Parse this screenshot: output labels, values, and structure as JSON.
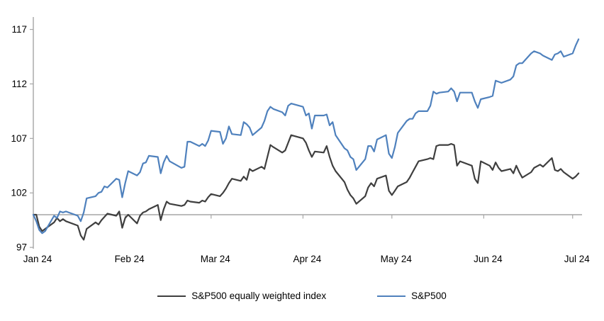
{
  "chart_data": {
    "type": "line",
    "title": "",
    "xlabel": "",
    "ylabel": "",
    "ylim": [
      97,
      117
    ],
    "grid": false,
    "legend_position": "bottom",
    "y_axis": {
      "ticks": [
        97,
        102,
        107,
        112,
        117
      ],
      "baseline_value": 100
    },
    "x_axis": {
      "origin_date": "2024-01-01",
      "tick_dates": [
        "2024-01-01",
        "2024-02-01",
        "2024-03-01",
        "2024-04-01",
        "2024-05-01",
        "2024-06-01",
        "2024-07-01"
      ],
      "tick_labels": [
        "Jan 24",
        "Feb 24",
        "Mar 24",
        "Apr 24",
        "May 24",
        "Jun 24",
        "Jul 24"
      ]
    },
    "colors": {
      "axis": "#a6a6a6",
      "equal_weight_line": "#3f3f3f",
      "sp500_line": "#4f81bd",
      "text": "#000000"
    },
    "dates": [
      "2024-01-01",
      "2024-01-02",
      "2024-01-03",
      "2024-01-04",
      "2024-01-05",
      "2024-01-08",
      "2024-01-09",
      "2024-01-10",
      "2024-01-11",
      "2024-01-12",
      "2024-01-16",
      "2024-01-17",
      "2024-01-18",
      "2024-01-19",
      "2024-01-22",
      "2024-01-23",
      "2024-01-24",
      "2024-01-25",
      "2024-01-26",
      "2024-01-29",
      "2024-01-30",
      "2024-01-31",
      "2024-02-01",
      "2024-02-02",
      "2024-02-05",
      "2024-02-06",
      "2024-02-07",
      "2024-02-08",
      "2024-02-09",
      "2024-02-12",
      "2024-02-13",
      "2024-02-14",
      "2024-02-15",
      "2024-02-16",
      "2024-02-20",
      "2024-02-21",
      "2024-02-22",
      "2024-02-23",
      "2024-02-26",
      "2024-02-27",
      "2024-02-28",
      "2024-02-29",
      "2024-03-01",
      "2024-03-04",
      "2024-03-05",
      "2024-03-06",
      "2024-03-07",
      "2024-03-08",
      "2024-03-11",
      "2024-03-12",
      "2024-03-13",
      "2024-03-14",
      "2024-03-15",
      "2024-03-18",
      "2024-03-19",
      "2024-03-20",
      "2024-03-21",
      "2024-03-22",
      "2024-03-25",
      "2024-03-26",
      "2024-03-27",
      "2024-03-28",
      "2024-04-01",
      "2024-04-02",
      "2024-04-03",
      "2024-04-04",
      "2024-04-05",
      "2024-04-08",
      "2024-04-09",
      "2024-04-10",
      "2024-04-11",
      "2024-04-12",
      "2024-04-15",
      "2024-04-16",
      "2024-04-17",
      "2024-04-18",
      "2024-04-19",
      "2024-04-22",
      "2024-04-23",
      "2024-04-24",
      "2024-04-25",
      "2024-04-26",
      "2024-04-29",
      "2024-04-30",
      "2024-05-01",
      "2024-05-02",
      "2024-05-03",
      "2024-05-06",
      "2024-05-07",
      "2024-05-08",
      "2024-05-09",
      "2024-05-10",
      "2024-05-13",
      "2024-05-14",
      "2024-05-15",
      "2024-05-16",
      "2024-05-17",
      "2024-05-20",
      "2024-05-21",
      "2024-05-22",
      "2024-05-23",
      "2024-05-24",
      "2024-05-28",
      "2024-05-29",
      "2024-05-30",
      "2024-05-31",
      "2024-06-03",
      "2024-06-04",
      "2024-06-05",
      "2024-06-06",
      "2024-06-07",
      "2024-06-10",
      "2024-06-11",
      "2024-06-12",
      "2024-06-13",
      "2024-06-14",
      "2024-06-17",
      "2024-06-18",
      "2024-06-20",
      "2024-06-21",
      "2024-06-24",
      "2024-06-25",
      "2024-06-26",
      "2024-06-27",
      "2024-06-28",
      "2024-07-01",
      "2024-07-02",
      "2024-07-03"
    ],
    "series": [
      {
        "name": "S&P500 equally weighted index",
        "color": "#3f3f3f",
        "values": [
          100.0,
          100.0,
          98.9,
          98.5,
          98.7,
          99.3,
          99.7,
          99.4,
          99.6,
          99.4,
          99.0,
          98.1,
          97.7,
          98.7,
          99.3,
          99.1,
          99.5,
          99.8,
          100.1,
          99.9,
          100.3,
          98.8,
          99.7,
          100.0,
          99.2,
          99.9,
          100.2,
          100.3,
          100.5,
          100.9,
          99.5,
          100.5,
          101.2,
          101.0,
          100.8,
          100.9,
          101.3,
          101.2,
          101.1,
          101.3,
          101.2,
          101.6,
          101.9,
          101.7,
          102.0,
          102.4,
          102.9,
          103.3,
          103.1,
          103.5,
          103.2,
          104.2,
          104.0,
          104.4,
          104.2,
          105.3,
          106.4,
          106.2,
          105.7,
          105.9,
          106.6,
          107.3,
          107.0,
          106.6,
          105.9,
          105.3,
          105.8,
          105.7,
          106.3,
          105.3,
          104.5,
          104.0,
          103.0,
          102.3,
          101.8,
          101.5,
          101.0,
          101.7,
          102.5,
          102.9,
          102.6,
          103.3,
          103.6,
          102.2,
          101.8,
          102.2,
          102.6,
          103.0,
          103.4,
          103.9,
          104.4,
          104.9,
          105.1,
          105.2,
          105.1,
          106.3,
          106.4,
          106.4,
          106.5,
          106.4,
          104.5,
          104.9,
          104.5,
          103.3,
          102.9,
          104.9,
          104.5,
          104.1,
          104.8,
          104.3,
          104.0,
          104.2,
          103.8,
          104.5,
          103.9,
          103.4,
          103.9,
          104.3,
          104.6,
          104.4,
          105.2,
          104.1,
          104.0,
          104.2,
          103.9,
          103.3,
          103.5,
          103.8
        ]
      },
      {
        "name": "S&P500",
        "color": "#4f81bd",
        "values": [
          100.0,
          99.4,
          98.6,
          98.3,
          98.5,
          99.9,
          99.7,
          100.3,
          100.2,
          100.3,
          99.9,
          99.4,
          100.2,
          101.5,
          101.7,
          102.0,
          102.1,
          102.6,
          102.5,
          103.3,
          103.2,
          101.6,
          102.9,
          104.0,
          103.6,
          103.9,
          104.7,
          104.8,
          105.4,
          105.3,
          103.8,
          104.8,
          105.4,
          104.9,
          104.3,
          104.4,
          106.7,
          106.7,
          106.3,
          106.5,
          106.3,
          106.8,
          107.7,
          107.6,
          106.5,
          107.0,
          108.1,
          107.4,
          107.3,
          108.5,
          108.3,
          108.0,
          107.3,
          108.0,
          108.6,
          109.5,
          109.9,
          109.7,
          109.4,
          109.1,
          110.0,
          110.2,
          109.9,
          109.1,
          109.3,
          107.9,
          109.1,
          109.1,
          109.2,
          108.2,
          108.5,
          107.3,
          106.1,
          105.9,
          105.3,
          105.1,
          104.1,
          105.1,
          106.3,
          106.3,
          105.8,
          106.9,
          107.3,
          105.6,
          105.2,
          106.2,
          107.5,
          108.6,
          108.8,
          108.8,
          109.3,
          109.5,
          109.5,
          110.0,
          111.3,
          111.1,
          111.2,
          111.3,
          111.6,
          111.3,
          110.4,
          111.2,
          111.2,
          110.4,
          109.8,
          110.6,
          110.8,
          110.9,
          112.3,
          112.2,
          112.1,
          112.4,
          112.7,
          113.7,
          113.9,
          113.9,
          114.8,
          115.0,
          114.8,
          114.6,
          114.2,
          114.7,
          114.8,
          115.0,
          114.5,
          114.8,
          115.5,
          116.1
        ]
      }
    ]
  }
}
